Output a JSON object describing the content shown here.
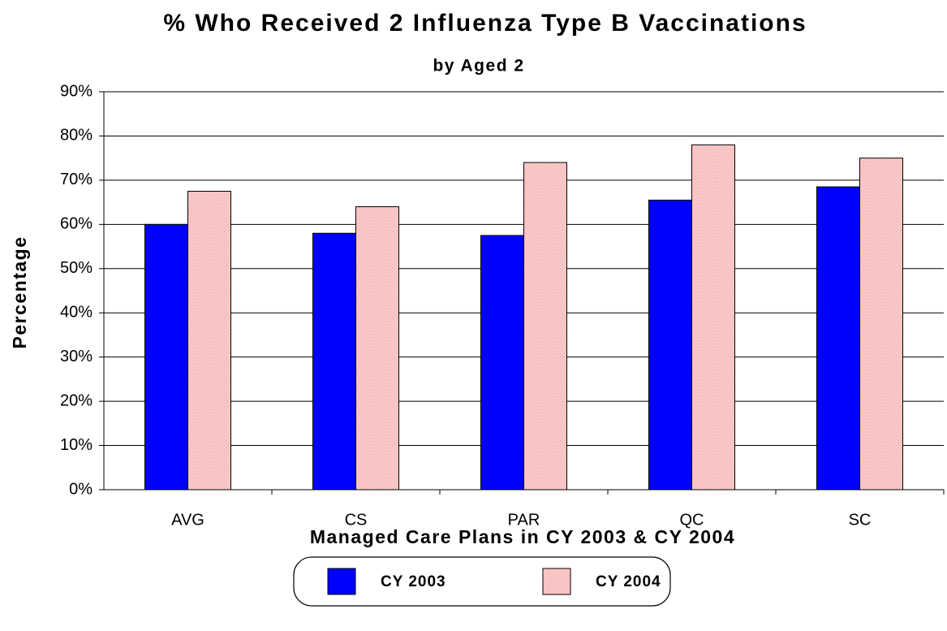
{
  "chart_data": {
    "type": "bar",
    "title": "% Who Received 2 Influenza Type B Vaccinations",
    "subtitle": "by Aged 2",
    "y_label": "Percentage",
    "x_label": "Managed Care Plans in CY 2003 & CY 2004",
    "categories": [
      "AVG",
      "CS",
      "PAR",
      "QC",
      "SC"
    ],
    "series": [
      {
        "name": "CY 2003",
        "color": "#0000ff",
        "values": [
          60,
          58,
          57.5,
          65.5,
          68.5
        ]
      },
      {
        "name": "CY 2004",
        "color": "#f6b9b9",
        "values": [
          67.5,
          64,
          74,
          78,
          75
        ]
      }
    ],
    "ylim": [
      0,
      90
    ],
    "yticks": [
      {
        "value": 0,
        "label": "0%"
      },
      {
        "value": 10,
        "label": "10%"
      },
      {
        "value": 20,
        "label": "20%"
      },
      {
        "value": 30,
        "label": "30%"
      },
      {
        "value": 40,
        "label": "40%"
      },
      {
        "value": 50,
        "label": "50%"
      },
      {
        "value": 60,
        "label": "60%"
      },
      {
        "value": 70,
        "label": "70%"
      },
      {
        "value": 80,
        "label": "80%"
      },
      {
        "value": 90,
        "label": "90%"
      }
    ],
    "grid": true
  }
}
